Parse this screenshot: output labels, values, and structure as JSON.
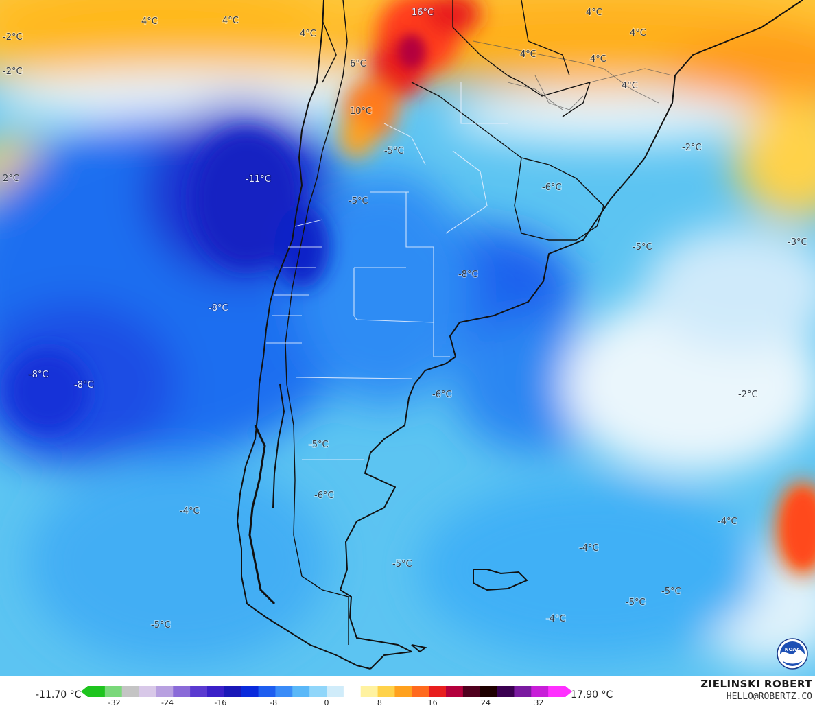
{
  "map": {
    "temperature_labels": [
      {
        "text": "16°C"
      },
      {
        "text": "4°C"
      },
      {
        "text": "4°C"
      },
      {
        "text": "4°C"
      },
      {
        "text": "4°C"
      },
      {
        "text": "4°C"
      },
      {
        "text": "4°C"
      },
      {
        "text": "4°C"
      },
      {
        "text": "4°C"
      },
      {
        "text": "-2°C"
      },
      {
        "text": "-2°C"
      },
      {
        "text": "6°C"
      },
      {
        "text": "10°C"
      },
      {
        "text": "-5°C"
      },
      {
        "text": "-2°C"
      },
      {
        "text": "2°C"
      },
      {
        "text": "-11°C"
      },
      {
        "text": "-5°C"
      },
      {
        "text": "-6°C"
      },
      {
        "text": "-5°C"
      },
      {
        "text": "-3°C"
      },
      {
        "text": "-8°C"
      },
      {
        "text": "-8°C"
      },
      {
        "text": "-8°C"
      },
      {
        "text": "-8°C"
      },
      {
        "text": "-6°C"
      },
      {
        "text": "-2°C"
      },
      {
        "text": "-5°C"
      },
      {
        "text": "-6°C"
      },
      {
        "text": "-4°C"
      },
      {
        "text": "-4°C"
      },
      {
        "text": "-4°C"
      },
      {
        "text": "-5°C"
      },
      {
        "text": "-5°C"
      },
      {
        "text": "-5°C"
      },
      {
        "text": "-4°C"
      },
      {
        "text": "-5°C"
      }
    ]
  },
  "legend": {
    "min_label": "-11.70 °C",
    "max_label": "17.90 °C",
    "ticks": [
      "-32",
      "-24",
      "-16",
      "-8",
      "0",
      "8",
      "16",
      "24",
      "32"
    ],
    "tick_values": [
      -32,
      -24,
      -16,
      -8,
      0,
      8,
      16,
      24,
      32
    ],
    "range": [
      -36,
      36
    ],
    "colors": [
      "#1ec41e",
      "#7ad87a",
      "#c4c4c4",
      "#d8c8e8",
      "#b8a0e0",
      "#8a6ad8",
      "#5a3ad0",
      "#3a20c8",
      "#1a18b8",
      "#0a2adc",
      "#1e5ef0",
      "#3a8cf8",
      "#5ab8f8",
      "#90d6fa",
      "#d0ecfa",
      "#ffffff",
      "#fff2a0",
      "#ffd24a",
      "#ffa11e",
      "#ff6a1e",
      "#e81e1e",
      "#b4003c",
      "#50001e",
      "#1e0000",
      "#3a0050",
      "#7a1aa0",
      "#c81ed8",
      "#ff30ff"
    ]
  },
  "branding": {
    "author": "ZIELINSKI ROBERT",
    "email": "HELLO@ROBERTZ.CO",
    "logo": "noaa-logo"
  }
}
